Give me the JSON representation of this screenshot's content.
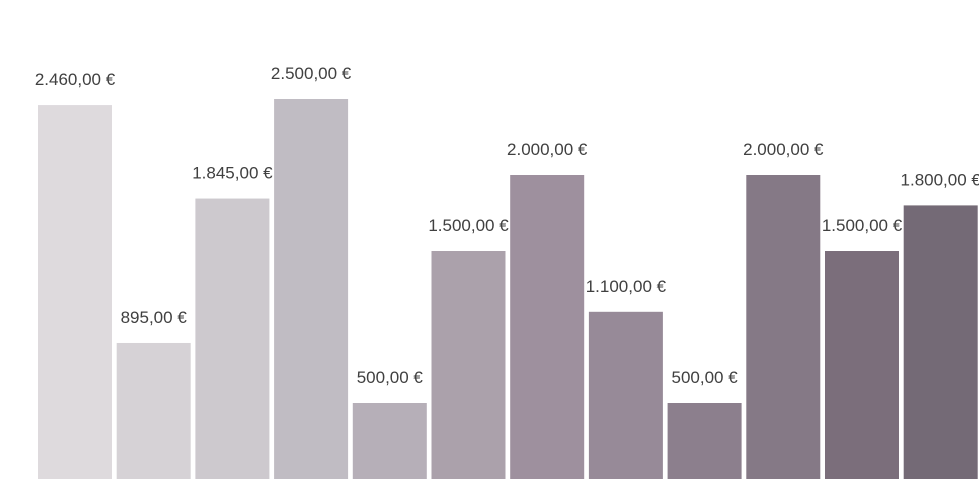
{
  "chart_data": {
    "type": "bar",
    "values": [
      2460,
      895,
      1845,
      2500,
      500,
      1500,
      2000,
      1100,
      500,
      2000,
      1500,
      1800
    ],
    "value_labels": [
      "2.460,00 €",
      "895,00 €",
      "1.845,00 €",
      "2.500,00 €",
      "500,00 €",
      "1.500,00 €",
      "2.000,00 €",
      "1.100,00 €",
      "500,00 €",
      "2.000,00 €",
      "1.500,00 €",
      "1.800,00 €"
    ],
    "colors": [
      "#dedadd",
      "#d6d2d6",
      "#cdc9ce",
      "#c0bcc3",
      "#b6afb8",
      "#aba1ab",
      "#9e909e",
      "#978a98",
      "#8c7f8d",
      "#857986",
      "#7b6e7b",
      "#746a76"
    ]
  }
}
